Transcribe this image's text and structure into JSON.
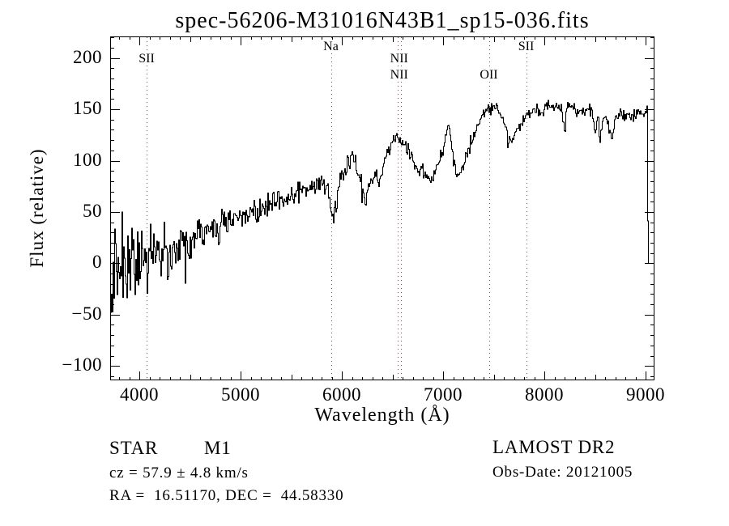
{
  "title": "spec-56206-M31016N43B1_sp15-036.fits",
  "footer": {
    "object_class": "STAR",
    "subclass": "M1",
    "cz": "cz = 57.9 ± 4.8 km/s",
    "coordinates": "RA =  16.51170, DEC =  44.58330",
    "survey": "LAMOST DR2",
    "obs_date": "Obs-Date: 20121005"
  },
  "chart_data": {
    "type": "line",
    "title": "spec-56206-M31016N43B1_sp15-036.fits",
    "xlabel": "Wavelength (Å)",
    "ylabel": "Flux (relative)",
    "xlim": [
      3712,
      9088
    ],
    "ylim": [
      -114,
      221
    ],
    "x_ticks": [
      4000,
      5000,
      6000,
      7000,
      8000,
      9000
    ],
    "y_ticks": [
      -100,
      -50,
      0,
      50,
      100,
      150,
      200
    ],
    "x_minor_step": 100,
    "y_minor_step": 10,
    "grid": false,
    "line_color": "#000000",
    "marker_line_color": "#a04038",
    "background_color": "#ffffff",
    "spectral_lines": [
      {
        "label": "SII",
        "wavelength": 4072,
        "row": 1
      },
      {
        "label": "Na",
        "wavelength": 5892,
        "row": 0
      },
      {
        "label": "NII",
        "wavelength": 6548,
        "row": 1,
        "label_wavelength": 6566
      },
      {
        "label": "NII",
        "wavelength": 6584,
        "row": 2,
        "label_wavelength": 6566
      },
      {
        "label": "OII",
        "wavelength": 7452,
        "row": 2
      },
      {
        "label": "SII",
        "wavelength": 7820,
        "row": 0
      }
    ],
    "series": [
      {
        "name": "flux",
        "points": [
          [
            3712,
            -15
          ],
          [
            3740,
            5
          ],
          [
            3770,
            -10
          ],
          [
            3800,
            0
          ],
          [
            3850,
            -5
          ],
          [
            3900,
            8
          ],
          [
            3950,
            0
          ],
          [
            4000,
            6
          ],
          [
            4050,
            10
          ],
          [
            4100,
            8
          ],
          [
            4150,
            14
          ],
          [
            4200,
            12
          ],
          [
            4300,
            18
          ],
          [
            4400,
            22
          ],
          [
            4500,
            26
          ],
          [
            4600,
            30
          ],
          [
            4700,
            33
          ],
          [
            4800,
            38
          ],
          [
            4900,
            43
          ],
          [
            5000,
            47
          ],
          [
            5100,
            50
          ],
          [
            5200,
            55
          ],
          [
            5300,
            58
          ],
          [
            5400,
            62
          ],
          [
            5500,
            67
          ],
          [
            5600,
            71
          ],
          [
            5700,
            76
          ],
          [
            5800,
            80
          ],
          [
            5850,
            74
          ],
          [
            5878,
            58
          ],
          [
            5905,
            47
          ],
          [
            5935,
            58
          ],
          [
            5965,
            74
          ],
          [
            6000,
            86
          ],
          [
            6050,
            96
          ],
          [
            6090,
            105
          ],
          [
            6130,
            98
          ],
          [
            6170,
            85
          ],
          [
            6210,
            66
          ],
          [
            6230,
            62
          ],
          [
            6260,
            72
          ],
          [
            6300,
            79
          ],
          [
            6340,
            84
          ],
          [
            6360,
            80
          ],
          [
            6400,
            94
          ],
          [
            6450,
            106
          ],
          [
            6500,
            117
          ],
          [
            6540,
            127
          ],
          [
            6563,
            119
          ],
          [
            6590,
            121
          ],
          [
            6620,
            114
          ],
          [
            6650,
            109
          ],
          [
            6680,
            102
          ],
          [
            6710,
            97
          ],
          [
            6740,
            92
          ],
          [
            6780,
            88
          ],
          [
            6830,
            86
          ],
          [
            6870,
            83
          ],
          [
            6910,
            88
          ],
          [
            6950,
            97
          ],
          [
            7000,
            114
          ],
          [
            7035,
            136
          ],
          [
            7060,
            126
          ],
          [
            7090,
            103
          ],
          [
            7120,
            86
          ],
          [
            7150,
            84
          ],
          [
            7190,
            94
          ],
          [
            7240,
            108
          ],
          [
            7290,
            122
          ],
          [
            7340,
            135
          ],
          [
            7390,
            146
          ],
          [
            7440,
            151
          ],
          [
            7490,
            153
          ],
          [
            7540,
            149
          ],
          [
            7590,
            139
          ],
          [
            7630,
            124
          ],
          [
            7660,
            120
          ],
          [
            7700,
            126
          ],
          [
            7750,
            134
          ],
          [
            7800,
            141
          ],
          [
            7850,
            147
          ],
          [
            7900,
            150
          ],
          [
            7950,
            146
          ],
          [
            8000,
            151
          ],
          [
            8060,
            155
          ],
          [
            8120,
            153
          ],
          [
            8160,
            150
          ],
          [
            8195,
            128
          ],
          [
            8220,
            156
          ],
          [
            8270,
            151
          ],
          [
            8320,
            148
          ],
          [
            8370,
            146
          ],
          [
            8420,
            150
          ],
          [
            8460,
            146
          ],
          [
            8498,
            126
          ],
          [
            8520,
            147
          ],
          [
            8542,
            123
          ],
          [
            8575,
            144
          ],
          [
            8610,
            141
          ],
          [
            8662,
            119
          ],
          [
            8690,
            143
          ],
          [
            8730,
            147
          ],
          [
            8770,
            143
          ],
          [
            8820,
            145
          ],
          [
            8870,
            141
          ],
          [
            8920,
            147
          ],
          [
            8960,
            144
          ],
          [
            9000,
            149
          ],
          [
            9008,
            152
          ],
          [
            9012,
            120
          ],
          [
            9016,
            40
          ],
          [
            9020,
            2
          ],
          [
            9024,
            4
          ]
        ]
      }
    ],
    "noise_envelope": [
      [
        3712,
        50
      ],
      [
        3800,
        42
      ],
      [
        3900,
        38
      ],
      [
        4000,
        32
      ],
      [
        4150,
        28
      ],
      [
        4300,
        22
      ],
      [
        4500,
        17
      ],
      [
        4750,
        14
      ],
      [
        5000,
        11
      ],
      [
        5300,
        10
      ],
      [
        5600,
        9
      ],
      [
        6000,
        8
      ],
      [
        6400,
        7
      ],
      [
        6800,
        6
      ],
      [
        7200,
        5
      ],
      [
        7600,
        4.5
      ],
      [
        8000,
        4.5
      ],
      [
        8500,
        5.5
      ],
      [
        9000,
        4
      ],
      [
        9024,
        3
      ]
    ]
  }
}
